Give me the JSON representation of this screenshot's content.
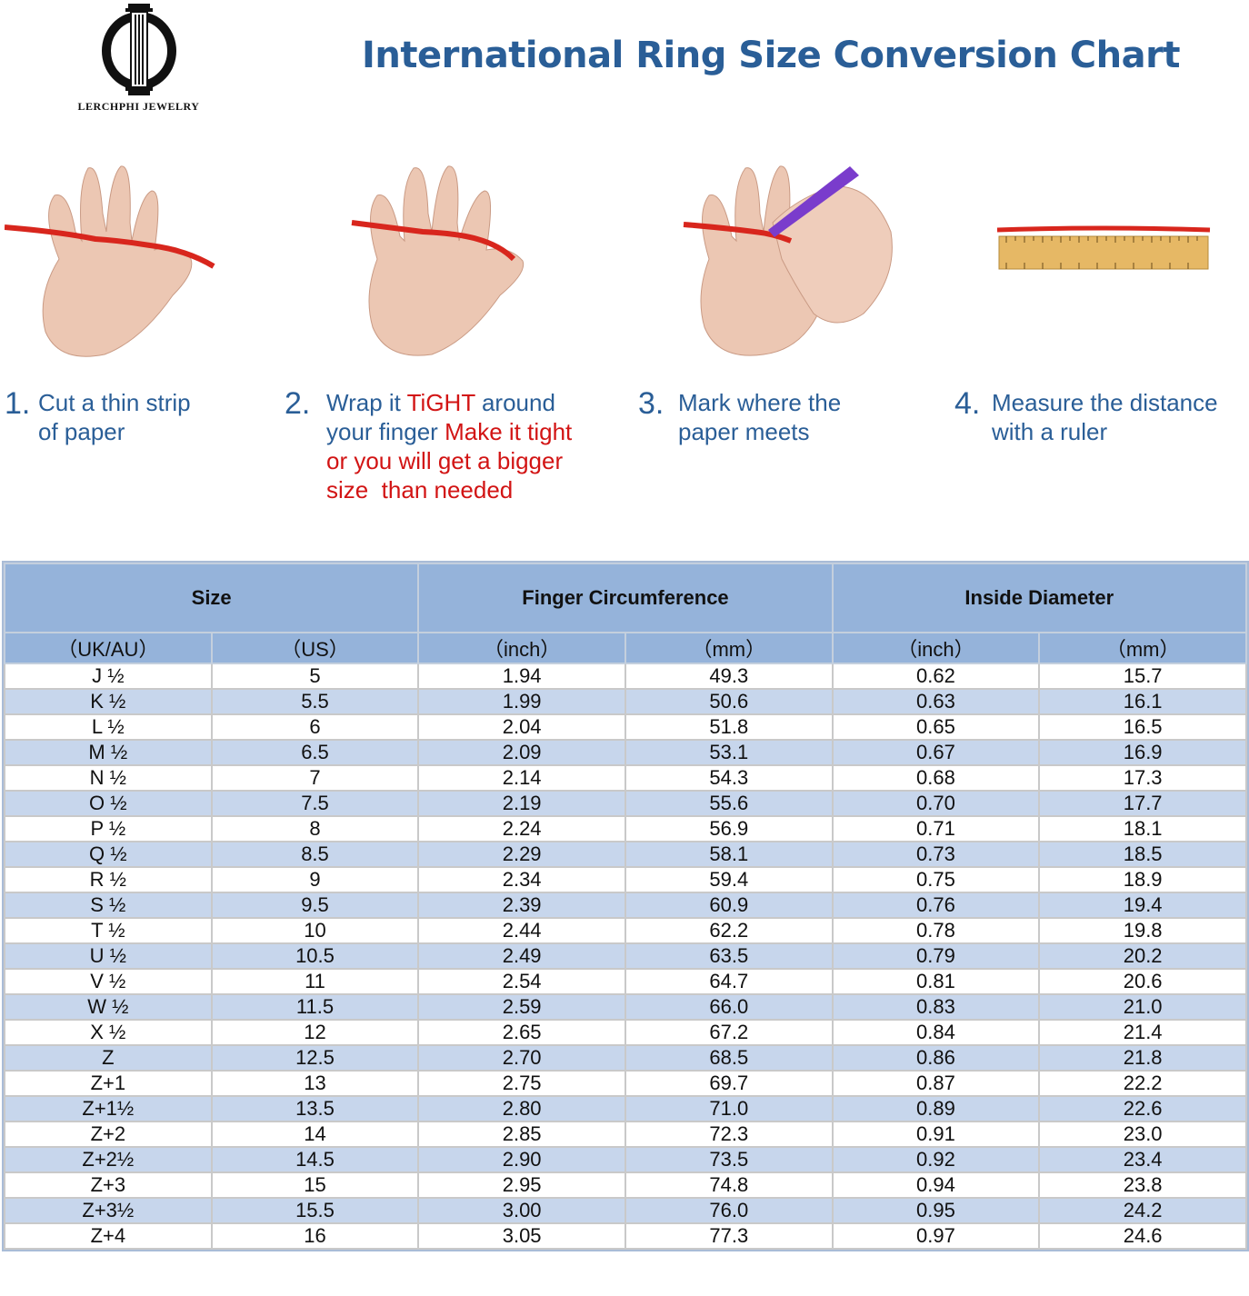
{
  "logo": {
    "brand": "LERCHPHI JEWELRY"
  },
  "title": "International Ring Size Conversion Chart",
  "steps": [
    {
      "num": "1.",
      "lines": [
        "Cut a thin strip",
        "of paper"
      ]
    },
    {
      "num": "2.",
      "line1_a": "Wrap it ",
      "line1_b": "TiGHT",
      "line1_c": " around",
      "line2_a": "your finger ",
      "line2_b": "Make it tight",
      "line3": "or you will get a bigger",
      "line4": "size  than needed"
    },
    {
      "num": "3.",
      "lines": [
        "Mark where the",
        "paper meets"
      ]
    },
    {
      "num": "4.",
      "lines": [
        "Measure the distance",
        "with a ruler"
      ]
    }
  ],
  "table": {
    "group_headers": [
      "Size",
      "Finger Circumference",
      "Inside Diameter"
    ],
    "sub_headers": [
      "（UK/AU）",
      "（US）",
      "（inch）",
      "（mm）",
      "（inch）",
      "（mm）"
    ],
    "rows": [
      [
        "J ½",
        "5",
        "1.94",
        "49.3",
        "0.62",
        "15.7"
      ],
      [
        "K ½",
        "5.5",
        "1.99",
        "50.6",
        "0.63",
        "16.1"
      ],
      [
        "L ½",
        "6",
        "2.04",
        "51.8",
        "0.65",
        "16.5"
      ],
      [
        "M ½",
        "6.5",
        "2.09",
        "53.1",
        "0.67",
        "16.9"
      ],
      [
        "N ½",
        "7",
        "2.14",
        "54.3",
        "0.68",
        "17.3"
      ],
      [
        "O ½",
        "7.5",
        "2.19",
        "55.6",
        "0.70",
        "17.7"
      ],
      [
        "P ½",
        "8",
        "2.24",
        "56.9",
        "0.71",
        "18.1"
      ],
      [
        "Q ½",
        "8.5",
        "2.29",
        "58.1",
        "0.73",
        "18.5"
      ],
      [
        "R ½",
        "9",
        "2.34",
        "59.4",
        "0.75",
        "18.9"
      ],
      [
        "S ½",
        "9.5",
        "2.39",
        "60.9",
        "0.76",
        "19.4"
      ],
      [
        "T ½",
        "10",
        "2.44",
        "62.2",
        "0.78",
        "19.8"
      ],
      [
        "U ½",
        "10.5",
        "2.49",
        "63.5",
        "0.79",
        "20.2"
      ],
      [
        "V ½",
        "11",
        "2.54",
        "64.7",
        "0.81",
        "20.6"
      ],
      [
        "W ½",
        "11.5",
        "2.59",
        "66.0",
        "0.83",
        "21.0"
      ],
      [
        "X ½",
        "12",
        "2.65",
        "67.2",
        "0.84",
        "21.4"
      ],
      [
        "Z",
        "12.5",
        "2.70",
        "68.5",
        "0.86",
        "21.8"
      ],
      [
        "Z+1",
        "13",
        "2.75",
        "69.7",
        "0.87",
        "22.2"
      ],
      [
        "Z+1½",
        "13.5",
        "2.80",
        "71.0",
        "0.89",
        "22.6"
      ],
      [
        "Z+2",
        "14",
        "2.85",
        "72.3",
        "0.91",
        "23.0"
      ],
      [
        "Z+2½",
        "14.5",
        "2.90",
        "73.5",
        "0.92",
        "23.4"
      ],
      [
        "Z+3",
        "15",
        "2.95",
        "74.8",
        "0.94",
        "23.8"
      ],
      [
        "Z+3½",
        "15.5",
        "3.00",
        "76.0",
        "0.95",
        "24.2"
      ],
      [
        "Z+4",
        "16",
        "3.05",
        "77.3",
        "0.97",
        "24.6"
      ]
    ]
  }
}
